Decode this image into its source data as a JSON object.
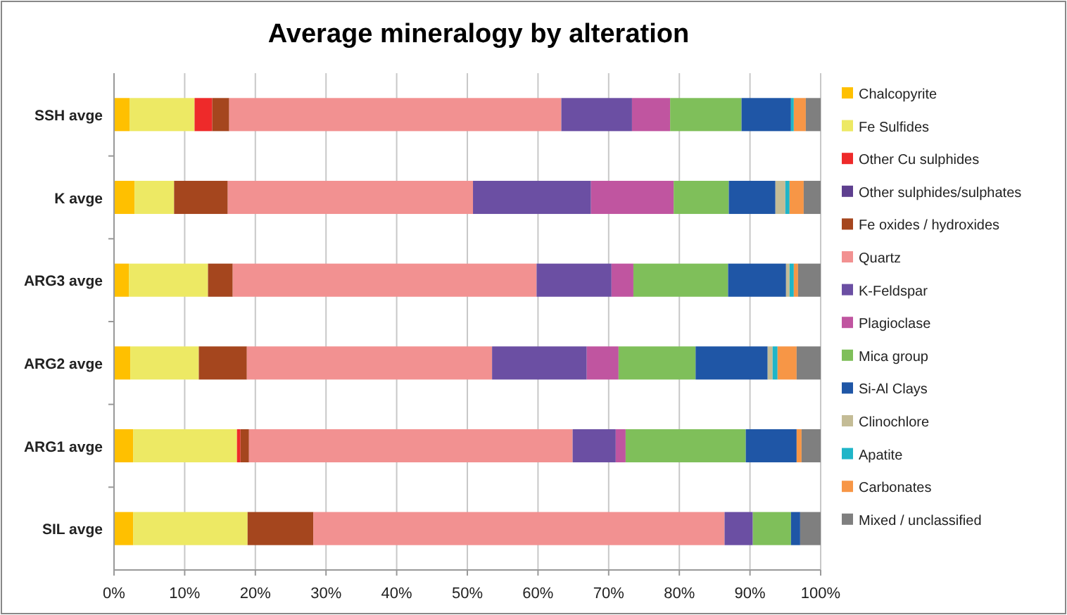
{
  "chart_data": {
    "type": "bar",
    "title": "Average mineralogy by alteration",
    "orientation": "horizontal",
    "stacked": true,
    "categories": [
      "SSH avge",
      "K avge",
      "ARG3 avge",
      "ARG2 avge",
      "ARG1 avge",
      "SIL avge"
    ],
    "series": [
      {
        "name": "Chalcopyrite",
        "color": "#ffc000",
        "values": [
          2.2,
          2.9,
          2.1,
          2.3,
          2.7,
          2.7
        ]
      },
      {
        "name": "Fe Sulfides",
        "color": "#ede964",
        "values": [
          9.2,
          5.6,
          11.2,
          9.7,
          14.7,
          16.2
        ]
      },
      {
        "name": "Other Cu sulphides",
        "color": "#ee2a2a",
        "values": [
          2.5,
          0,
          0,
          0,
          0.5,
          0
        ]
      },
      {
        "name": "Other sulphides/sulphates",
        "color": "#5e3f8f",
        "values": [
          0,
          0,
          0,
          0,
          0,
          0
        ]
      },
      {
        "name": "Fe oxides / hydroxides",
        "color": "#a5461e",
        "values": [
          2.4,
          7.6,
          3.5,
          6.8,
          1.2,
          9.3
        ]
      },
      {
        "name": "Quartz",
        "color": "#f29191",
        "values": [
          47,
          34.7,
          43,
          34.7,
          45.8,
          58.2
        ]
      },
      {
        "name": "K-Feldspar",
        "color": "#6b4fa3",
        "values": [
          10,
          16.7,
          10.6,
          13.4,
          6.1,
          4
        ]
      },
      {
        "name": "Plagioclase",
        "color": "#c055a0",
        "values": [
          5.4,
          11.7,
          3.1,
          4.5,
          1.4,
          0
        ]
      },
      {
        "name": "Mica group",
        "color": "#7fbf5a",
        "values": [
          10.1,
          7.8,
          13.4,
          10.9,
          17,
          5.4
        ]
      },
      {
        "name": "Si-Al Clays",
        "color": "#1f56a6",
        "values": [
          7,
          6.6,
          8.2,
          10.2,
          7.2,
          1.3
        ]
      },
      {
        "name": "Clinochlore",
        "color": "#c4bc96",
        "values": [
          0,
          1.4,
          0.5,
          0.7,
          0,
          0
        ]
      },
      {
        "name": "Apatite",
        "color": "#1fb5c8",
        "values": [
          0.4,
          0.6,
          0.6,
          0.7,
          0,
          0
        ]
      },
      {
        "name": "Carbonates",
        "color": "#f79646",
        "values": [
          1.7,
          2,
          0.6,
          2.7,
          0.7,
          0
        ]
      },
      {
        "name": "Mixed / unclassified",
        "color": "#7f7f7f",
        "values": [
          2.1,
          2.4,
          3.2,
          3.4,
          2.7,
          2.9
        ]
      }
    ],
    "xlim": [
      0,
      100
    ],
    "xticks": [
      {
        "value": 0,
        "label": "0%"
      },
      {
        "value": 10,
        "label": "10%"
      },
      {
        "value": 20,
        "label": "20%"
      },
      {
        "value": 30,
        "label": "30%"
      },
      {
        "value": 40,
        "label": "40%"
      },
      {
        "value": 50,
        "label": "50%"
      },
      {
        "value": 60,
        "label": "60%"
      },
      {
        "value": 70,
        "label": "70%"
      },
      {
        "value": 80,
        "label": "80%"
      },
      {
        "value": 90,
        "label": "90%"
      },
      {
        "value": 100,
        "label": "100%"
      }
    ],
    "grid": "x",
    "legend": "right"
  }
}
